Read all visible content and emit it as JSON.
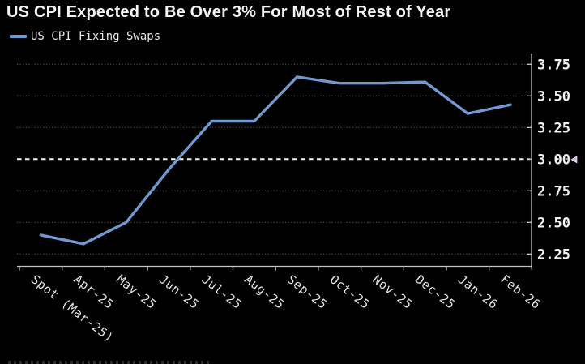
{
  "title": "US CPI Expected to Be Over 3% For Most of Rest of Year",
  "legend": {
    "label": "US CPI Fixing Swaps",
    "swatch_color": "#7099d0"
  },
  "colors": {
    "background": "#000000",
    "title_text": "#f4f4f4",
    "line": "#7099d0",
    "gridline": "#8f8f82",
    "threshold_line": "#f2f2f2",
    "axis": "#c4c4c4",
    "y_labels": "#f3f3f3",
    "x_labels": "#e2e2e2",
    "threshold_marker": "#d9aee2"
  },
  "chart_data": {
    "type": "line",
    "title": "US CPI Expected to Be Over 3% For Most of Rest of Year",
    "categories": [
      "Spot (Mar-25)",
      "Apr-25",
      "May-25",
      "Jun-25",
      "Jul-25",
      "Aug-25",
      "Sep-25",
      "Oct-25",
      "Nov-25",
      "Dec-25",
      "Jan-26",
      "Feb-26"
    ],
    "series": [
      {
        "name": "US CPI Fixing Swaps",
        "color": "#7099d0",
        "values": [
          2.4,
          2.33,
          2.5,
          2.92,
          3.3,
          3.3,
          3.65,
          3.6,
          3.6,
          3.61,
          3.36,
          3.43
        ]
      }
    ],
    "xlabel": "",
    "ylabel": "",
    "ylim": [
      2.15,
      3.82
    ],
    "yticks": [
      3.75,
      3.5,
      3.25,
      3.0,
      2.75,
      2.5,
      2.25
    ],
    "ytick_labels": [
      "3.75",
      "3.50",
      "3.25",
      "3.00",
      "2.75",
      "2.50",
      "2.25"
    ],
    "threshold": 3.0,
    "grid": "horizontal-dotted",
    "axis_side": "right",
    "legend_position": "top-left",
    "x_label_rotation_deg": 38
  }
}
